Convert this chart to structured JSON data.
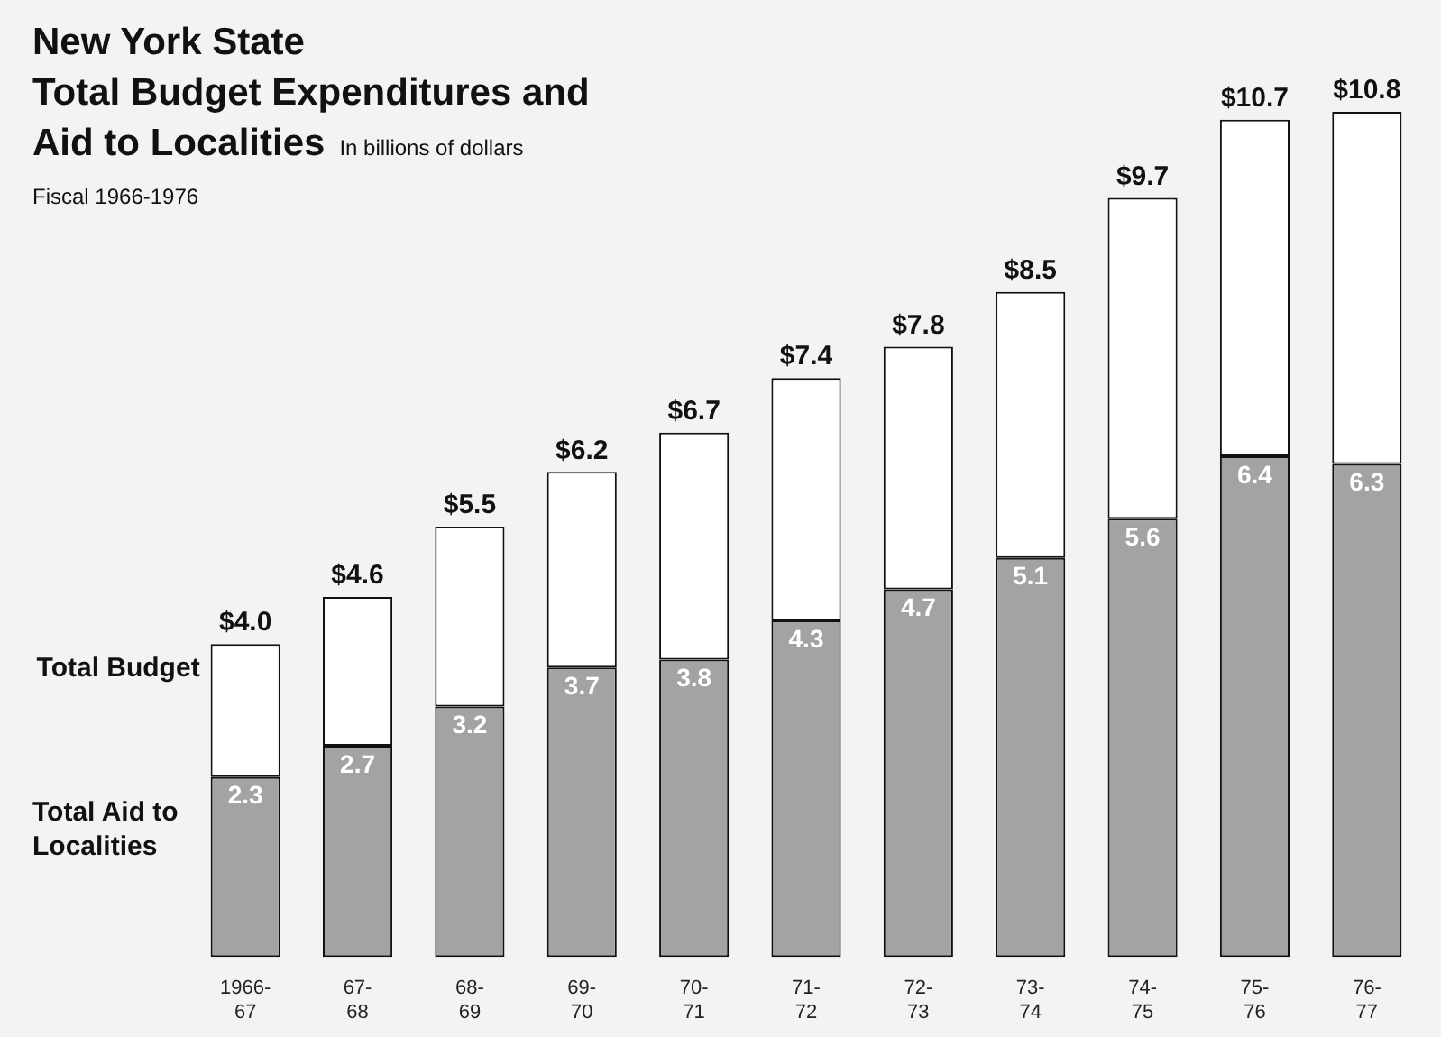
{
  "chart_data": {
    "type": "bar",
    "title": "New York State\nTotal Budget Expenditures and\nAid to Localities",
    "subtitle": "In billions of dollars",
    "annotations": [
      "Fiscal 1966-1976"
    ],
    "stacked": true,
    "categories": [
      "1966-67",
      "67-68",
      "68-69",
      "69-70",
      "70-71",
      "71-72",
      "72-73",
      "73-74",
      "74-75",
      "75-76",
      "76-77"
    ],
    "series": [
      {
        "name": "Total Aid to Localities",
        "color": "#a3a3a3",
        "values": [
          2.3,
          2.7,
          3.2,
          3.7,
          3.8,
          4.3,
          4.7,
          5.1,
          5.6,
          6.4,
          6.3
        ],
        "value_labels": [
          "2.3",
          "2.7",
          "3.2",
          "3.7",
          "3.8",
          "4.3",
          "4.7",
          "5.1",
          "5.6",
          "6.4",
          "6.3"
        ]
      },
      {
        "name": "Total Budget",
        "color": "#ffffff",
        "values": [
          1.7,
          1.9,
          2.3,
          2.5,
          2.9,
          3.1,
          3.1,
          3.4,
          4.1,
          4.3,
          4.5
        ]
      }
    ],
    "totals": [
      "$4.0",
      "$4.6",
      "$5.5",
      "$6.2",
      "$6.7",
      "$7.4",
      "$7.8",
      "$8.5",
      "$9.7",
      "$10.7",
      "$10.8"
    ]
  }
}
